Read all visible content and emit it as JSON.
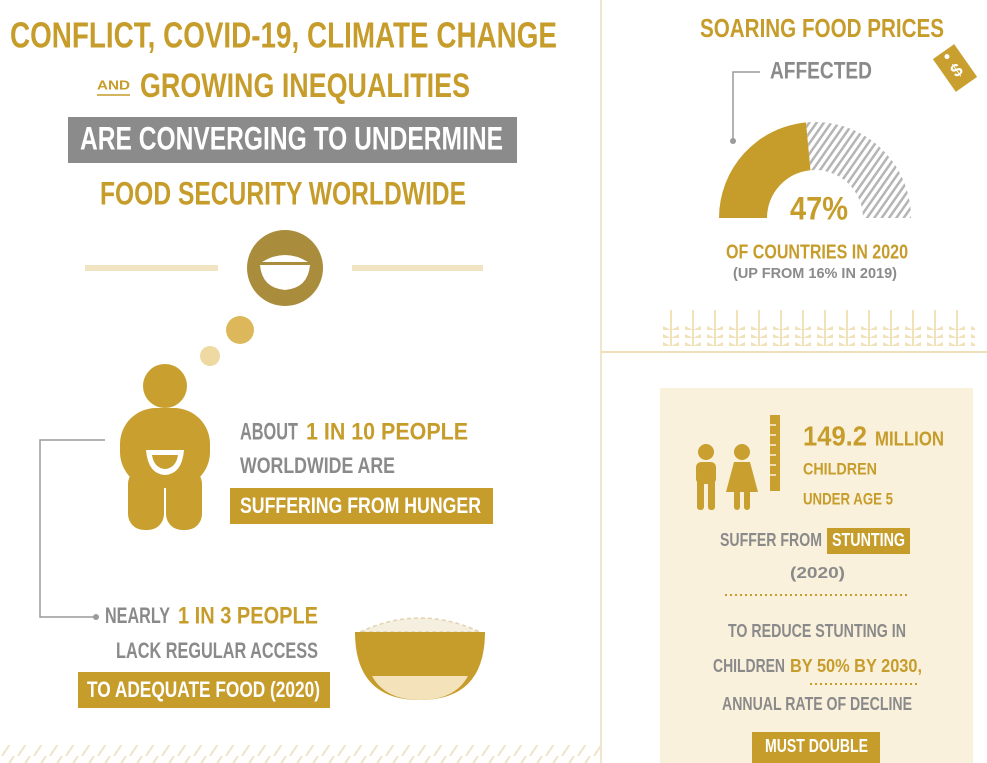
{
  "left": {
    "title_line1": "CONFLICT, COVID-19, CLIMATE CHANGE",
    "title_and": "AND",
    "title_line2": "GROWING INEQUALITIES",
    "title_line3": "ARE CONVERGING TO UNDERMINE",
    "title_line4": "FOOD SECURITY WORLDWIDE",
    "hunger": {
      "prefix": "ABOUT",
      "highlight": "1 IN 10 PEOPLE",
      "line2": "WORLDWIDE ARE",
      "box": "SUFFERING FROM HUNGER"
    },
    "access": {
      "prefix": "NEARLY",
      "highlight": "1 IN 3 PEOPLE",
      "line2": "LACK REGULAR ACCESS",
      "box": "TO ADEQUATE FOOD (2020)"
    }
  },
  "prices": {
    "title": "SOARING FOOD PRICES",
    "tag_symbol": "$",
    "affected": "AFFECTED",
    "gauge": {
      "value": 47,
      "label": "47%"
    },
    "caption": "OF COUNTRIES IN 2020",
    "note": "(UP FROM 16% IN 2019)"
  },
  "stunting": {
    "number": "149.2",
    "unit": "MILLION",
    "line2": "CHILDREN",
    "line3": "UNDER AGE 5",
    "suffer": "SUFFER FROM",
    "stunting": "STUNTING",
    "year": "(2020)",
    "target_line1": "TO REDUCE STUNTING IN",
    "target_prefix": "CHILDREN",
    "target_highlight": "BY 50% BY 2030,",
    "target_line3": "ANNUAL RATE OF DECLINE",
    "target_box": "MUST DOUBLE"
  }
}
